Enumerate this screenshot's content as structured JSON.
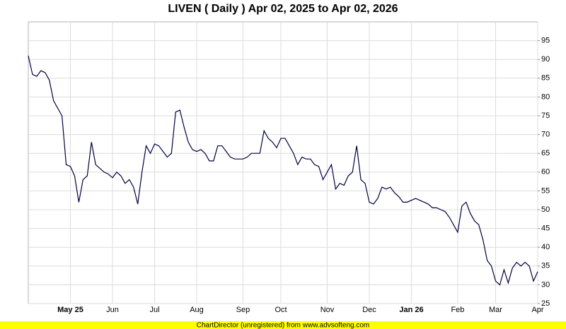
{
  "chart_data": {
    "type": "line",
    "title": "LIVEN ( Daily ) Apr 02, 2025 to Apr 02, 2026",
    "footer": "ChartDirector (unregistered) from www.advsofteng.com",
    "categories": [
      null,
      null,
      null,
      null,
      null,
      null,
      null,
      null,
      null,
      null,
      "May 25",
      null,
      null,
      null,
      null,
      null,
      null,
      null,
      null,
      null,
      "Jun",
      null,
      null,
      null,
      null,
      null,
      null,
      null,
      null,
      null,
      "Jul",
      null,
      null,
      null,
      null,
      null,
      null,
      null,
      null,
      null,
      "Aug",
      null,
      null,
      null,
      null,
      null,
      null,
      null,
      null,
      null,
      null,
      "Sep",
      null,
      null,
      null,
      null,
      null,
      null,
      null,
      null,
      "Oct",
      null,
      null,
      null,
      null,
      null,
      null,
      null,
      null,
      null,
      null,
      "Nov",
      null,
      null,
      null,
      null,
      null,
      null,
      null,
      null,
      null,
      "Dec",
      null,
      null,
      null,
      null,
      null,
      null,
      null,
      null,
      null,
      "Jan 26",
      null,
      null,
      null,
      null,
      null,
      null,
      null,
      null,
      null,
      null,
      "Feb",
      null,
      null,
      null,
      null,
      null,
      null,
      null,
      null,
      "Mar",
      null,
      null,
      null,
      null,
      null,
      null,
      null,
      null,
      null,
      "Apr"
    ],
    "series": [
      {
        "name": "LIVEN",
        "color": "#000040",
        "values": [
          91,
          86,
          85.5,
          87,
          86.5,
          84.5,
          79,
          77,
          75,
          62,
          61.5,
          59,
          52,
          58,
          59,
          68,
          62,
          61,
          60,
          59.5,
          58.5,
          60,
          59,
          57,
          58,
          56,
          51.5,
          60,
          67,
          65,
          67.5,
          67,
          65.5,
          64,
          65,
          76,
          76.5,
          72,
          68,
          66,
          65.5,
          66,
          65,
          63,
          63,
          67,
          67,
          65.5,
          64,
          63.5,
          63.5,
          63.5,
          64,
          65,
          65,
          65,
          71,
          69,
          68,
          66.5,
          69,
          69,
          67,
          65,
          62,
          64,
          63.5,
          63.5,
          62,
          61.5,
          58,
          60,
          62,
          55.5,
          57,
          56.5,
          59,
          60,
          67,
          58,
          57,
          52,
          51.5,
          53,
          56,
          55.5,
          56,
          54.5,
          53.5,
          52,
          52,
          52.5,
          53,
          52.5,
          52,
          51.5,
          50.5,
          50.5,
          50,
          49.5,
          48,
          46,
          44,
          51,
          52,
          49,
          47,
          46,
          42,
          36.5,
          35,
          31,
          30,
          34,
          30.5,
          34.5,
          36,
          35,
          36,
          35,
          31,
          33.5
        ]
      }
    ],
    "ylim": [
      25,
      100
    ],
    "yticks": [
      25,
      30,
      35,
      40,
      45,
      50,
      55,
      60,
      65,
      70,
      75,
      80,
      85,
      90,
      95
    ],
    "grid": true
  }
}
